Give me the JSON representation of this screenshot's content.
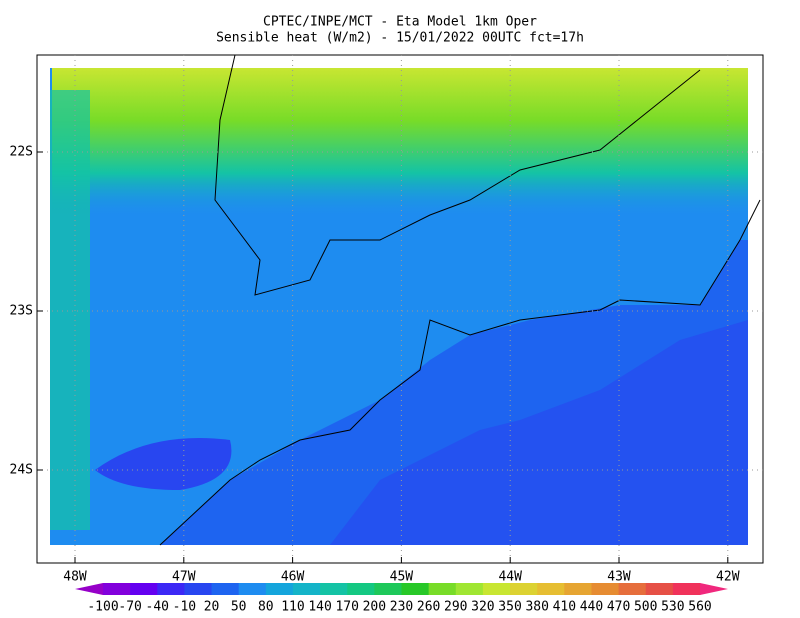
{
  "title": [
    "CPTEC/INPE/MCT -  Eta Model 1km Oper",
    "Sensible heat (W/m2) - 15/01/2022 00UTC fct=17h"
  ],
  "lat_labels": [
    "22S",
    "23S",
    "24S"
  ],
  "lon_labels": [
    "48W",
    "47W",
    "46W",
    "45W",
    "44W",
    "43W",
    "42W"
  ],
  "colorbar": {
    "levels": [
      -100,
      -70,
      -40,
      -10,
      20,
      50,
      80,
      110,
      140,
      170,
      200,
      230,
      260,
      290,
      320,
      350,
      380,
      410,
      440,
      470,
      500,
      530,
      560
    ],
    "colors": [
      "#9600c8",
      "#8200dc",
      "#6400f0",
      "#3c28f5",
      "#2846f0",
      "#1e64f0",
      "#1e8cf0",
      "#14a5dc",
      "#14b4c8",
      "#14c3a5",
      "#14c882",
      "#1ec85a",
      "#28c828",
      "#78dc28",
      "#a0e632",
      "#c8e632",
      "#dcd232",
      "#e6be32",
      "#e6a532",
      "#e68c32",
      "#e66e3c",
      "#e65046",
      "#f0325a",
      "#f0287d"
    ]
  }
}
